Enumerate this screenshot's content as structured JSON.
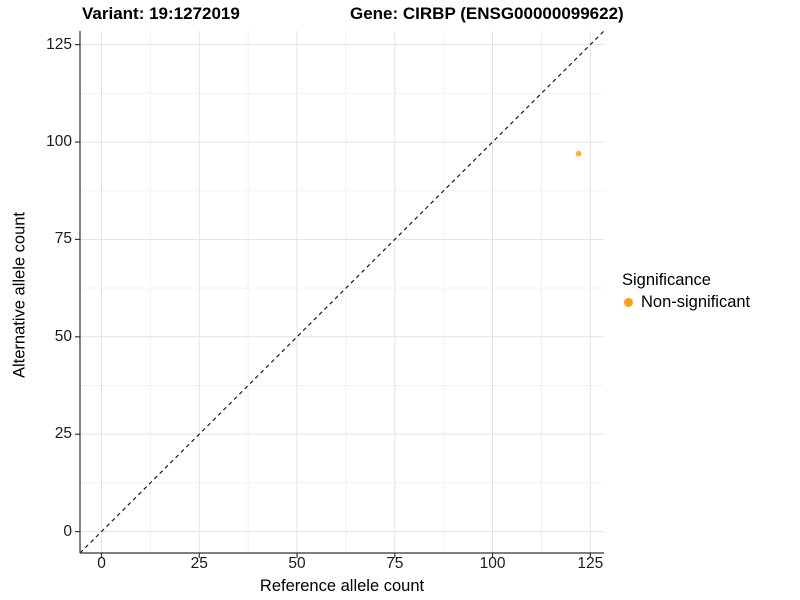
{
  "chart_data": {
    "type": "scatter",
    "title_left": "Variant: 19:1272019",
    "title_right": "Gene: CIRBP (ENSG00000099622)",
    "xlabel": "Reference allele count",
    "ylabel": "Alternative allele count",
    "xlim": [
      -5.5,
      128.5
    ],
    "ylim": [
      -5.5,
      128.5
    ],
    "x_ticks": [
      0,
      25,
      50,
      75,
      100,
      125
    ],
    "y_ticks": [
      0,
      25,
      50,
      75,
      100,
      125
    ],
    "x_minor_ticks": [
      12.5,
      37.5,
      62.5,
      87.5,
      112.5
    ],
    "y_minor_ticks": [
      12.5,
      37.5,
      62.5,
      87.5,
      112.5
    ],
    "grid": "major+minor",
    "identity_line": {
      "style": "dashed"
    },
    "series": [
      {
        "name": "Non-significant",
        "color": "#FFA10E",
        "points": [
          {
            "x": 122,
            "y": 97
          }
        ]
      }
    ],
    "legend": {
      "title": "Significance",
      "position": "right",
      "entries": [
        {
          "label": "Non-significant",
          "color": "#FFA10E"
        }
      ]
    }
  },
  "colors": {
    "accent_orange": "#FFA10E",
    "grid_major": "#E3E3E3",
    "grid_minor": "#F2F2F2",
    "axis_line": "#333333",
    "identity_line": "#1a1a1a",
    "text": "#000000"
  }
}
